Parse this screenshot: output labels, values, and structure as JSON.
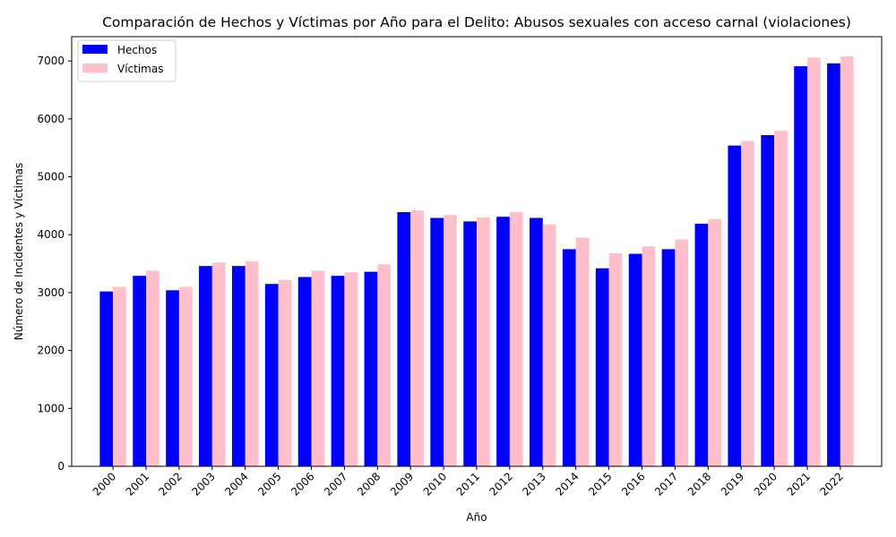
{
  "chart_data": {
    "type": "bar",
    "title": "Comparación de Hechos y Víctimas por Año para el Delito: Abusos sexuales con acceso carnal (violaciones)",
    "xlabel": "Año",
    "ylabel": "Número de Incidentes y Víctimas",
    "ylim": [
      0,
      7420
    ],
    "yticks": [
      0,
      1000,
      2000,
      3000,
      4000,
      5000,
      6000,
      7000
    ],
    "grid": false,
    "legend_position": "top-left",
    "categories": [
      "2000",
      "2001",
      "2002",
      "2003",
      "2004",
      "2005",
      "2006",
      "2007",
      "2008",
      "2009",
      "2010",
      "2011",
      "2012",
      "2013",
      "2014",
      "2015",
      "2016",
      "2017",
      "2018",
      "2019",
      "2020",
      "2021",
      "2022"
    ],
    "series": [
      {
        "name": "Hechos",
        "color": "#0000ff",
        "values": [
          3020,
          3290,
          3040,
          3460,
          3460,
          3150,
          3270,
          3290,
          3360,
          4390,
          4290,
          4230,
          4310,
          4290,
          3750,
          3420,
          3670,
          3750,
          4190,
          5540,
          5720,
          6910,
          6960
        ]
      },
      {
        "name": "Víctimas",
        "color": "#ffc0cb",
        "values": [
          3100,
          3380,
          3100,
          3520,
          3540,
          3220,
          3380,
          3350,
          3490,
          4420,
          4340,
          4300,
          4390,
          4180,
          3950,
          3680,
          3800,
          3920,
          4270,
          5620,
          5800,
          7060,
          7080
        ]
      }
    ]
  }
}
